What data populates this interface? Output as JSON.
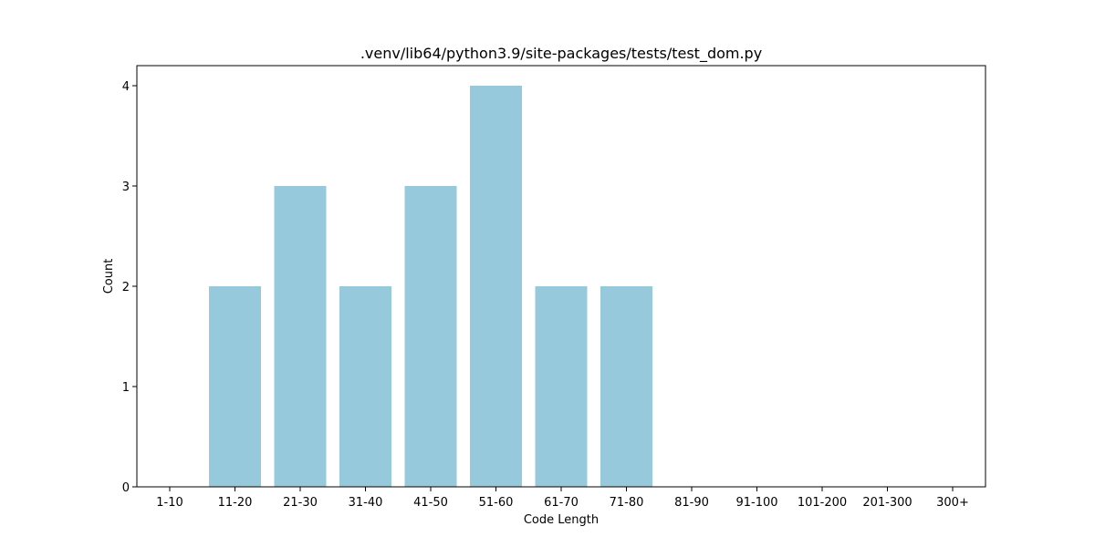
{
  "chart_data": {
    "type": "bar",
    "title": ".venv/lib64/python3.9/site-packages/tests/test_dom.py",
    "xlabel": "Code Length",
    "ylabel": "Count",
    "categories": [
      "1-10",
      "11-20",
      "21-30",
      "31-40",
      "41-50",
      "51-60",
      "61-70",
      "71-80",
      "81-90",
      "91-100",
      "101-200",
      "201-300",
      "300+"
    ],
    "values": [
      0,
      2,
      3,
      2,
      3,
      4,
      2,
      2,
      0,
      0,
      0,
      0,
      0
    ],
    "ylim": [
      0,
      4.2
    ],
    "yticks": [
      0,
      1,
      2,
      3,
      4
    ],
    "bar_color": "#96c9dc",
    "grid": false,
    "legend": "none"
  }
}
